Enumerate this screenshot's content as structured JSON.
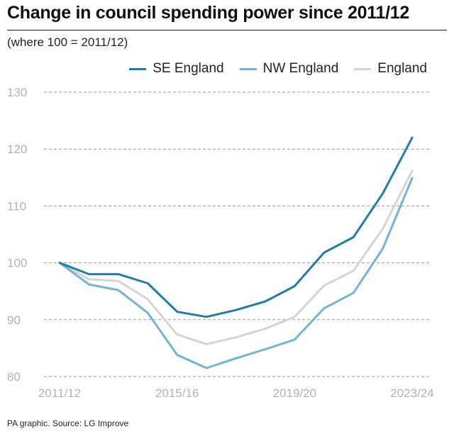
{
  "title": "Change in council spending power since 2011/12",
  "subtitle": "(where 100 = 2011/12)",
  "source": "PA graphic. Source: LG Improve",
  "colors": {
    "se": "#1f7ea3",
    "nw": "#6fb6d4",
    "eng": "#d4d4d4",
    "grid": "#9a9a9a",
    "tick": "#b3b3b3"
  },
  "chart_data": {
    "type": "line",
    "title": "Change in council spending power since 2011/12",
    "subtitle": "(where 100 = 2011/12)",
    "x": [
      "2011/12",
      "2012/13",
      "2013/14",
      "2014/15",
      "2015/16",
      "2016/17",
      "2017/18",
      "2018/19",
      "2019/20",
      "2020/21",
      "2021/22",
      "2022/23",
      "2023/24"
    ],
    "x_tick_labels": [
      "2011/12",
      "2015/16",
      "2019/20",
      "2023/24"
    ],
    "ylim": [
      80,
      130
    ],
    "y_ticks": [
      80,
      90,
      100,
      110,
      120,
      130
    ],
    "grid": "horizontal dashed",
    "legend_position": "top-right",
    "series": [
      {
        "name": "SE England",
        "color": "#1f7ea3",
        "values": [
          100,
          98.0,
          98.0,
          96.4,
          91.4,
          90.5,
          91.7,
          93.2,
          95.9,
          101.8,
          104.5,
          112.2,
          122.0
        ]
      },
      {
        "name": "NW England",
        "color": "#6fb6d4",
        "values": [
          100,
          96.2,
          95.2,
          91.2,
          83.8,
          81.5,
          83.2,
          84.8,
          86.5,
          92.0,
          94.7,
          102.5,
          114.9
        ]
      },
      {
        "name": "England",
        "color": "#d4d4d4",
        "values": [
          100,
          97.1,
          96.8,
          93.6,
          87.4,
          85.7,
          86.9,
          88.4,
          90.5,
          96.0,
          98.6,
          106.0,
          116.2
        ]
      }
    ]
  }
}
